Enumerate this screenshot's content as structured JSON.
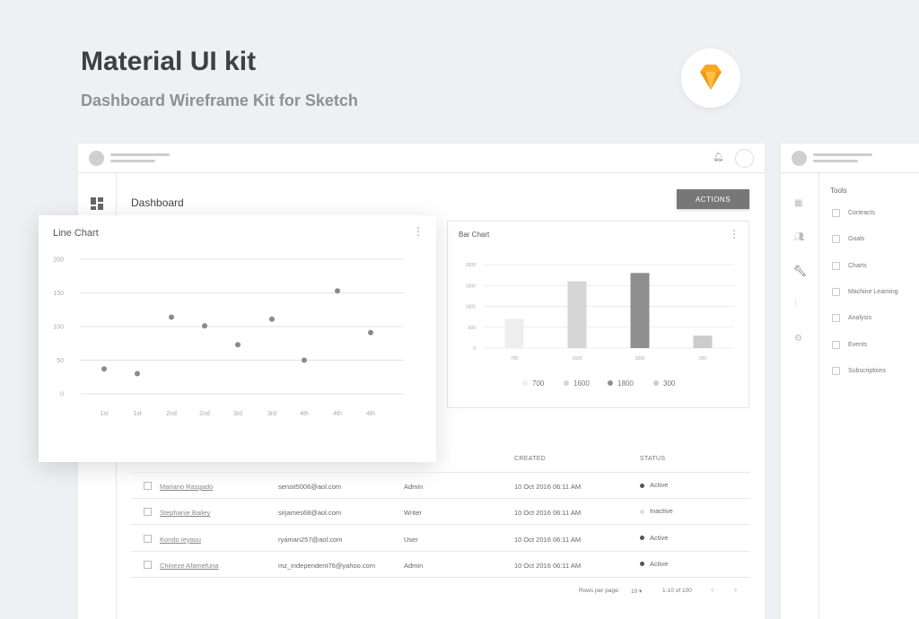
{
  "header": {
    "title": "Material UI kit",
    "subtitle": "Dashboard Wireframe Kit for Sketch"
  },
  "dashboard": {
    "title": "Dashboard",
    "actions_label": "ACTIONS"
  },
  "chart_data": [
    {
      "type": "scatter",
      "title": "Line Chart",
      "categories": [
        "1st",
        "1st",
        "2nd",
        "2nd",
        "3rd",
        "3rd",
        "4th",
        "4th",
        "4th"
      ],
      "values": [
        37,
        30,
        114,
        101,
        73,
        111,
        50,
        153,
        91
      ],
      "yticks": [
        0,
        50,
        100,
        150,
        200
      ],
      "ylim": [
        0,
        200
      ],
      "grid": true,
      "color": "#8a8a8a"
    },
    {
      "type": "bar",
      "title": "Bar Chart",
      "categories": [
        "700",
        "1600",
        "1800",
        "300"
      ],
      "values": [
        700,
        1600,
        1800,
        300
      ],
      "yticks": [
        0,
        500,
        1000,
        1500,
        2000
      ],
      "ylim": [
        0,
        2000
      ],
      "grid": true,
      "colors": [
        "#eeeeee",
        "#d6d6d6",
        "#8f8f8f",
        "#cccccc"
      ],
      "legend": [
        "700",
        "1600",
        "1800",
        "300"
      ],
      "legend_position": "bottom"
    }
  ],
  "table": {
    "columns": {
      "created": "CREATED",
      "status": "STATUS"
    },
    "rows": [
      {
        "name": "Mariano Rasgado",
        "email": "sensit5006@aol.com",
        "role": "Admin",
        "created": "10 Oct 2016 06:11 AM",
        "status": "Active"
      },
      {
        "name": "Stephanie Bailey",
        "email": "sirjames68@aol.com",
        "role": "Writer",
        "created": "10 Oct 2016 06:11 AM",
        "status": "Inactive"
      },
      {
        "name": "Kondo Ieyasu",
        "email": "ryaman257@aol.com",
        "role": "User",
        "created": "10 Oct 2016 06:11 AM",
        "status": "Active"
      },
      {
        "name": "Chineze Afamefuna",
        "email": "mz_independent76@yahoo.com",
        "role": "Admin",
        "created": "10 Oct 2016 06:11 AM",
        "status": "Active"
      }
    ],
    "pagination": {
      "rows_per_page_label": "Rows per page:",
      "rows_per_page": "10",
      "range": "1-10 of 100"
    }
  },
  "tools": {
    "heading": "Tools",
    "items": [
      "Contracts",
      "Goals",
      "Charts",
      "Machine Learning",
      "Analysis",
      "Events",
      "Subscriptions"
    ]
  },
  "colors": {
    "active": "#555555",
    "inactive": "#dddddd",
    "logo": "#f7a823"
  }
}
